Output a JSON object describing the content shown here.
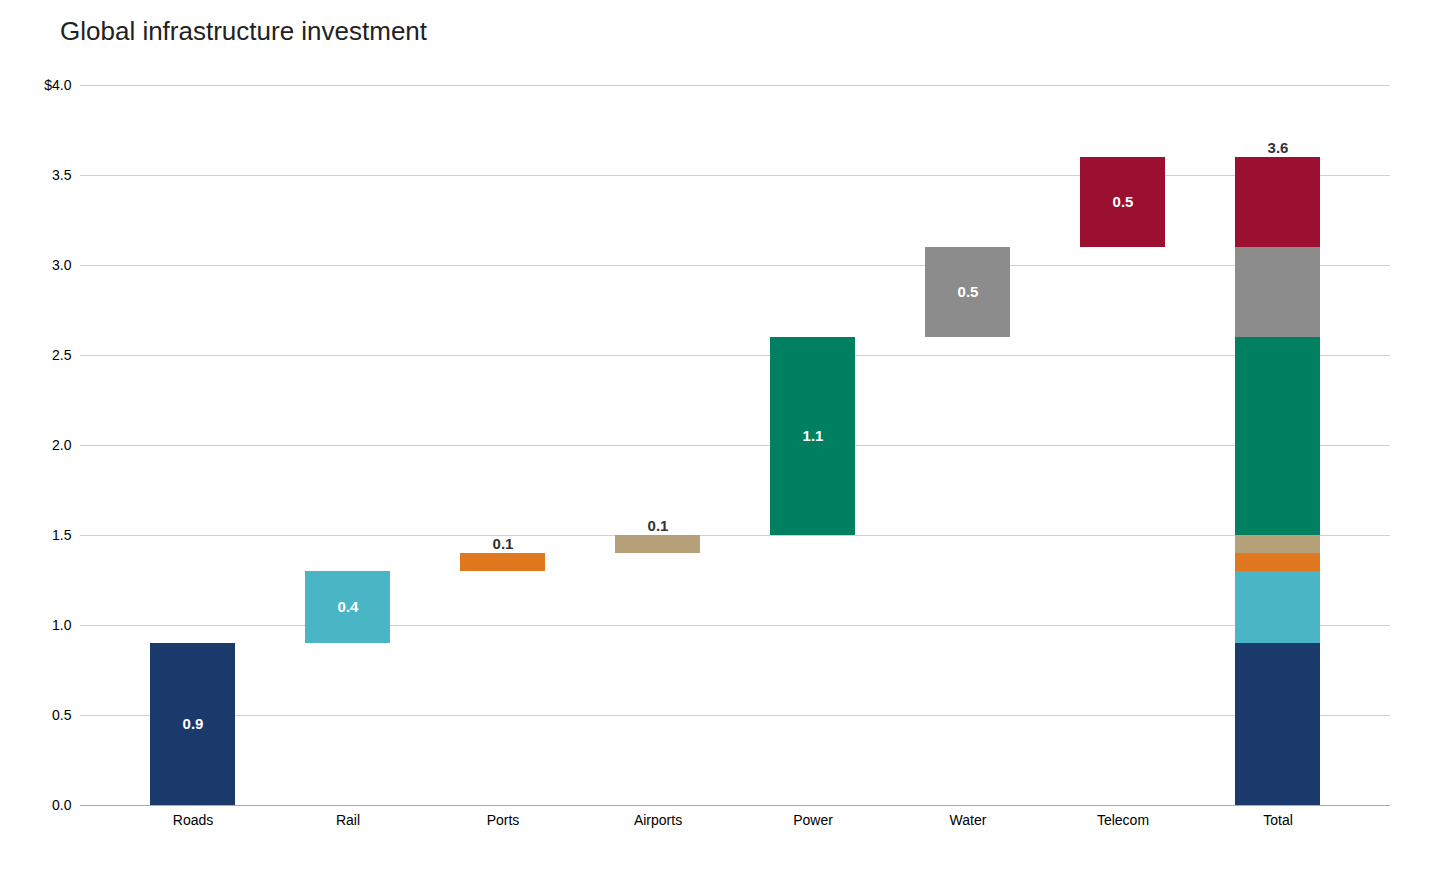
{
  "chart_data": {
    "type": "waterfall",
    "title": "Global infrastructure investment",
    "categories": [
      "Roads",
      "Rail",
      "Ports",
      "Airports",
      "Power",
      "Water",
      "Telecom",
      "Total"
    ],
    "values": [
      0.9,
      0.4,
      0.1,
      0.1,
      1.1,
      0.5,
      0.5,
      3.6
    ],
    "colors": [
      "#1a3a6b",
      "#4ab5c4",
      "#e07820",
      "#b5a07a",
      "#008060",
      "#8c8c8c",
      "#9b1030",
      null
    ],
    "ylim": [
      0,
      4.0
    ],
    "yticks": [
      {
        "value": 0.0,
        "label": "0.0"
      },
      0.5,
      {
        "value": 1.0,
        "label": "1.0"
      },
      1.5,
      {
        "value": 2.0,
        "label": "2.0"
      },
      2.5,
      {
        "value": 3.0,
        "label": "3.0"
      },
      3.5,
      {
        "value": 4.0,
        "label": "$4.0"
      }
    ],
    "grid": true,
    "data_labels": true
  }
}
